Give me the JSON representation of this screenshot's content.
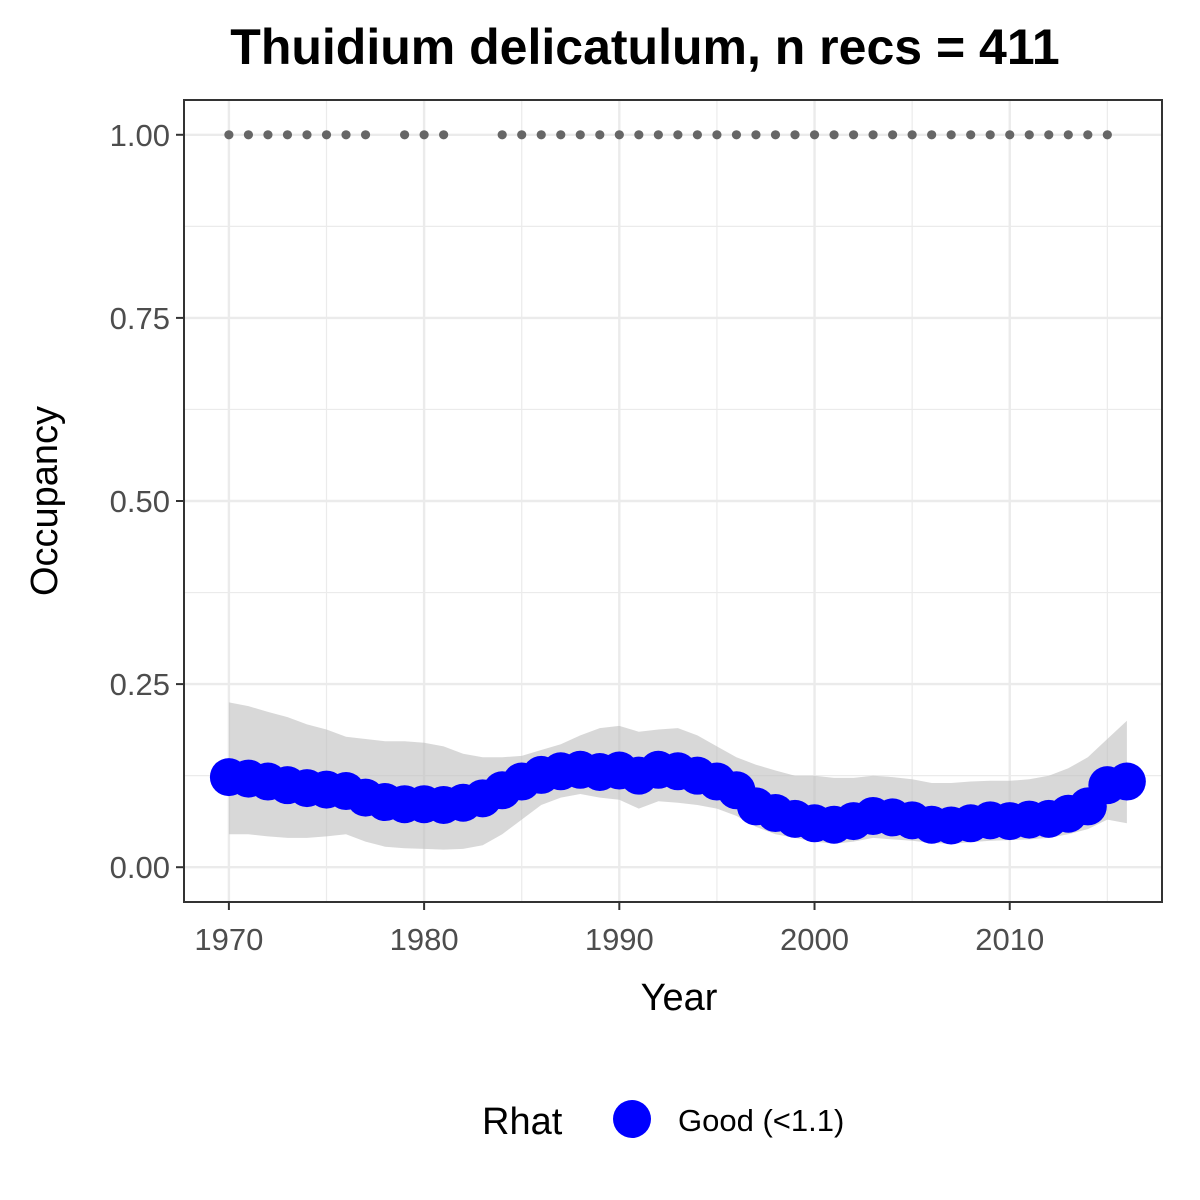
{
  "chart_data": {
    "type": "line",
    "title": "Thuidium delicatulum, n recs = 411",
    "xlabel": "Year",
    "ylabel": "Occupancy",
    "xlim": [
      1967.7,
      2017.8
    ],
    "ylim": [
      -0.0475,
      1.0475
    ],
    "x_ticks": [
      1970,
      1980,
      1990,
      2000,
      2010
    ],
    "x_tick_labels": [
      "1970",
      "1980",
      "1990",
      "2000",
      "2010"
    ],
    "y_ticks": [
      0,
      0.25,
      0.5,
      0.75,
      1.0
    ],
    "y_tick_labels": [
      "0.00",
      "0.25",
      "0.50",
      "0.75",
      "1.00"
    ],
    "grid": true,
    "legend": {
      "title": "Rhat",
      "position": "bottom",
      "entries": [
        {
          "label": "Good (<1.1)",
          "color": "#0000ff"
        }
      ]
    },
    "colors": {
      "points": "#0000ff",
      "ribbon": "#bebebe",
      "records": "#666666",
      "panel_border": "#333333",
      "grid": "#ebebeb"
    },
    "series": [
      {
        "name": "Good (<1.1)",
        "x": [
          1970,
          1971,
          1972,
          1973,
          1974,
          1975,
          1976,
          1977,
          1978,
          1979,
          1980,
          1981,
          1982,
          1983,
          1984,
          1985,
          1986,
          1987,
          1988,
          1989,
          1990,
          1991,
          1992,
          1993,
          1994,
          1995,
          1996,
          1997,
          1998,
          1999,
          2000,
          2001,
          2002,
          2003,
          2004,
          2005,
          2006,
          2007,
          2008,
          2009,
          2010,
          2011,
          2012,
          2013,
          2014,
          2015,
          2016
        ],
        "values": [
          0.123,
          0.121,
          0.117,
          0.112,
          0.108,
          0.106,
          0.104,
          0.095,
          0.089,
          0.086,
          0.086,
          0.085,
          0.088,
          0.094,
          0.105,
          0.117,
          0.126,
          0.131,
          0.133,
          0.13,
          0.132,
          0.125,
          0.133,
          0.131,
          0.125,
          0.117,
          0.105,
          0.083,
          0.074,
          0.066,
          0.06,
          0.058,
          0.063,
          0.07,
          0.068,
          0.064,
          0.058,
          0.057,
          0.06,
          0.064,
          0.063,
          0.065,
          0.066,
          0.073,
          0.083,
          0.112,
          0.117
        ],
        "lower": [
          0.045,
          0.045,
          0.042,
          0.04,
          0.04,
          0.042,
          0.045,
          0.035,
          0.028,
          0.026,
          0.025,
          0.024,
          0.025,
          0.03,
          0.045,
          0.065,
          0.085,
          0.095,
          0.1,
          0.095,
          0.092,
          0.08,
          0.09,
          0.088,
          0.085,
          0.08,
          0.07,
          0.055,
          0.045,
          0.04,
          0.035,
          0.032,
          0.035,
          0.04,
          0.038,
          0.036,
          0.033,
          0.032,
          0.034,
          0.036,
          0.037,
          0.038,
          0.04,
          0.045,
          0.052,
          0.065,
          0.06
        ],
        "upper": [
          0.225,
          0.22,
          0.212,
          0.205,
          0.195,
          0.188,
          0.178,
          0.175,
          0.172,
          0.172,
          0.17,
          0.165,
          0.155,
          0.15,
          0.15,
          0.152,
          0.16,
          0.168,
          0.18,
          0.19,
          0.193,
          0.185,
          0.188,
          0.19,
          0.18,
          0.165,
          0.15,
          0.14,
          0.132,
          0.125,
          0.125,
          0.122,
          0.122,
          0.125,
          0.123,
          0.12,
          0.115,
          0.115,
          0.117,
          0.118,
          0.118,
          0.12,
          0.125,
          0.135,
          0.15,
          0.175,
          0.2
        ]
      },
      {
        "name": "",
        "x": [
          1970,
          1971,
          1972,
          1973,
          1974,
          1975,
          1976,
          1977,
          1979,
          1980,
          1981,
          1984,
          1985,
          1986,
          1987,
          1988,
          1989,
          1990,
          1991,
          1992,
          1993,
          1994,
          1995,
          1996,
          1997,
          1998,
          1999,
          2000,
          2001,
          2002,
          2003,
          2004,
          2005,
          2006,
          2007,
          2008,
          2009,
          2010,
          2011,
          2012,
          2013,
          2014,
          2015
        ],
        "values": [
          1,
          1,
          1,
          1,
          1,
          1,
          1,
          1,
          1,
          1,
          1,
          1,
          1,
          1,
          1,
          1,
          1,
          1,
          1,
          1,
          1,
          1,
          1,
          1,
          1,
          1,
          1,
          1,
          1,
          1,
          1,
          1,
          1,
          1,
          1,
          1,
          1,
          1,
          1,
          1,
          1,
          1,
          1
        ]
      }
    ]
  }
}
